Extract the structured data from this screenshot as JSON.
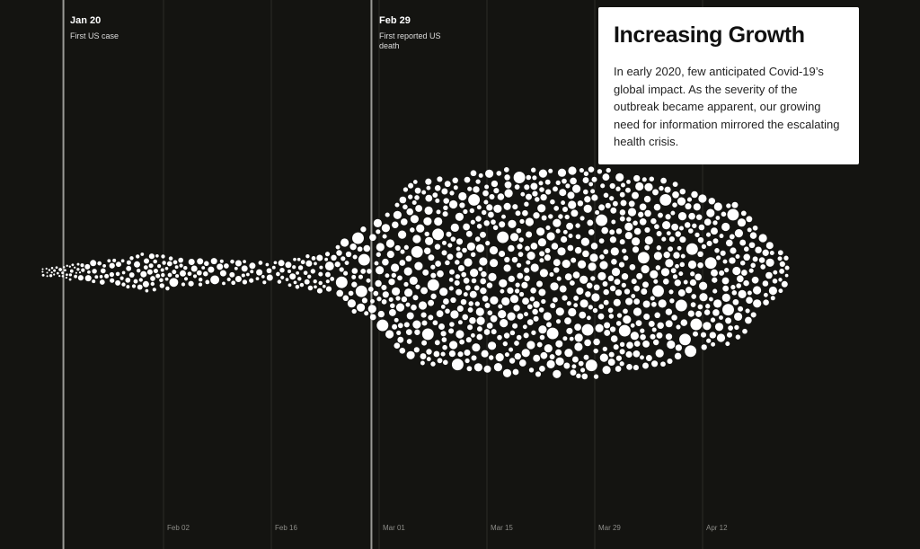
{
  "story": {
    "title": "Increasing Growth",
    "body": "In early 2020, few anticipated Covid-19’s global impact. As the severity of the outbreak became apparent, our growing need for information mirrored the escalating health crisis."
  },
  "colors": {
    "background": "#141411",
    "bubble": "#ffffff",
    "gridline": "#2c2c28",
    "event_line": "#9a9a96",
    "tick_label": "#8c8c88"
  },
  "chart_data": {
    "type": "scatter",
    "description_kind": "beeswarm of articles over time",
    "x_start": "2020-01-12",
    "x_end": "2020-04-26",
    "x_ticks": [
      "Feb 02",
      "Feb 16",
      "Mar 01",
      "Mar 15",
      "Mar 29",
      "Apr 12"
    ],
    "grid": "vertical",
    "events": [
      {
        "date": "Jan 20",
        "note": "First US case"
      },
      {
        "date": "Feb 29",
        "note": "First reported US death"
      }
    ],
    "density_profile": [
      {
        "date": "2020-01-17",
        "level": 2
      },
      {
        "date": "2020-01-25",
        "level": 18
      },
      {
        "date": "2020-01-31",
        "level": 34
      },
      {
        "date": "2020-02-06",
        "level": 22
      },
      {
        "date": "2020-02-16",
        "level": 16
      },
      {
        "date": "2020-02-23",
        "level": 38
      },
      {
        "date": "2020-02-28",
        "level": 90
      },
      {
        "date": "2020-03-06",
        "level": 190
      },
      {
        "date": "2020-03-15",
        "level": 215
      },
      {
        "date": "2020-03-29",
        "level": 220
      },
      {
        "date": "2020-04-05",
        "level": 200
      },
      {
        "date": "2020-04-15",
        "level": 150
      },
      {
        "date": "2020-04-23",
        "level": 35
      }
    ]
  }
}
